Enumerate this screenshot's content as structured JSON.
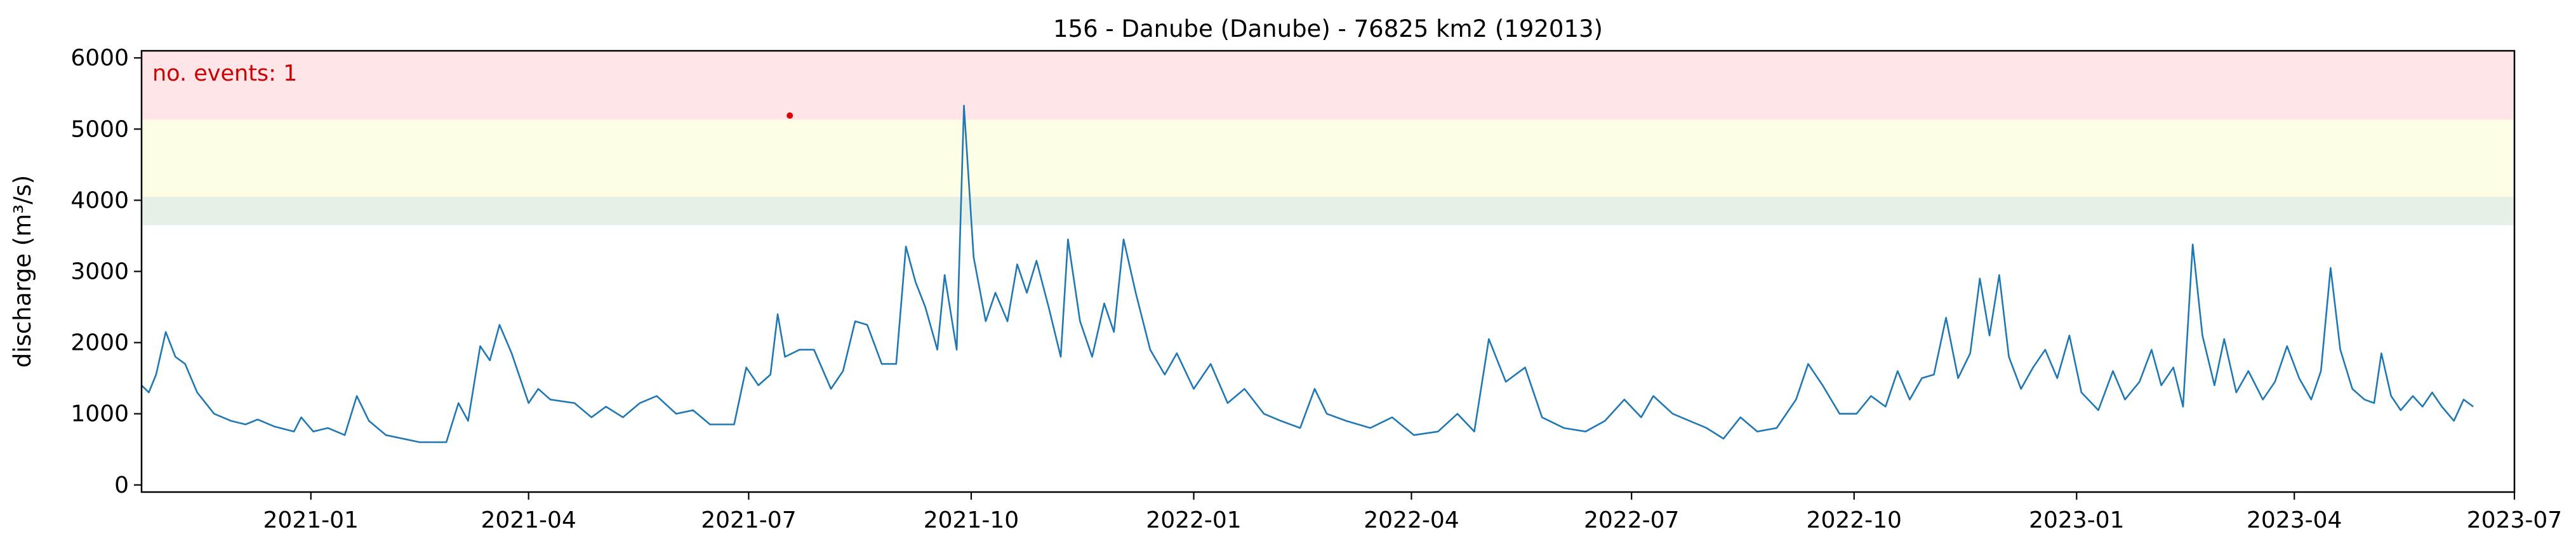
{
  "chart_data": {
    "type": "line",
    "title": "156 - Danube (Danube) - 76825 km2 (192013)",
    "xlabel": "",
    "ylabel": "discharge (m³/s)",
    "xlim": [
      "2020-10-23",
      "2023-07-01"
    ],
    "ylim": [
      -100,
      6100
    ],
    "yticks": [
      0,
      1000,
      2000,
      3000,
      4000,
      5000,
      6000
    ],
    "xticks": [
      "2021-01",
      "2021-04",
      "2021-07",
      "2021-10",
      "2022-01",
      "2022-04",
      "2022-07",
      "2022-10",
      "2023-01",
      "2023-04",
      "2023-07"
    ],
    "grid": false,
    "threshold_bands": [
      {
        "from": 3650,
        "to": 4050,
        "color": "#e6f0e6"
      },
      {
        "from": 4050,
        "to": 5130,
        "color": "#fefee6"
      },
      {
        "from": 5130,
        "to": 6100,
        "color": "#ffe5e8"
      }
    ],
    "annotation": {
      "text": "no. events: 1",
      "color": "#cc0000"
    },
    "event_markers": [
      {
        "x": "2021-07-18",
        "y": 5190,
        "color": "#e00000"
      }
    ],
    "series": [
      {
        "color": "#1f77b4",
        "points": [
          [
            "2020-10-23",
            1400
          ],
          [
            "2020-10-26",
            1300
          ],
          [
            "2020-10-29",
            1550
          ],
          [
            "2020-11-02",
            2150
          ],
          [
            "2020-11-06",
            1800
          ],
          [
            "2020-11-10",
            1700
          ],
          [
            "2020-11-15",
            1300
          ],
          [
            "2020-11-22",
            1000
          ],
          [
            "2020-11-29",
            900
          ],
          [
            "2020-12-05",
            850
          ],
          [
            "2020-12-10",
            920
          ],
          [
            "2020-12-17",
            820
          ],
          [
            "2020-12-25",
            750
          ],
          [
            "2020-12-28",
            950
          ],
          [
            "2021-01-02",
            750
          ],
          [
            "2021-01-08",
            800
          ],
          [
            "2021-01-15",
            700
          ],
          [
            "2021-01-20",
            1250
          ],
          [
            "2021-01-25",
            900
          ],
          [
            "2021-02-01",
            700
          ],
          [
            "2021-02-15",
            600
          ],
          [
            "2021-02-26",
            600
          ],
          [
            "2021-03-03",
            1150
          ],
          [
            "2021-03-07",
            900
          ],
          [
            "2021-03-12",
            1950
          ],
          [
            "2021-03-16",
            1750
          ],
          [
            "2021-03-20",
            2250
          ],
          [
            "2021-03-25",
            1850
          ],
          [
            "2021-04-01",
            1150
          ],
          [
            "2021-04-05",
            1350
          ],
          [
            "2021-04-10",
            1200
          ],
          [
            "2021-04-20",
            1150
          ],
          [
            "2021-04-27",
            950
          ],
          [
            "2021-05-03",
            1100
          ],
          [
            "2021-05-10",
            950
          ],
          [
            "2021-05-17",
            1150
          ],
          [
            "2021-05-24",
            1250
          ],
          [
            "2021-06-01",
            1000
          ],
          [
            "2021-06-08",
            1050
          ],
          [
            "2021-06-15",
            850
          ],
          [
            "2021-06-25",
            850
          ],
          [
            "2021-06-30",
            1650
          ],
          [
            "2021-07-05",
            1400
          ],
          [
            "2021-07-10",
            1550
          ],
          [
            "2021-07-13",
            2400
          ],
          [
            "2021-07-16",
            1800
          ],
          [
            "2021-07-22",
            1900
          ],
          [
            "2021-07-28",
            1900
          ],
          [
            "2021-08-04",
            1350
          ],
          [
            "2021-08-09",
            1600
          ],
          [
            "2021-08-14",
            2300
          ],
          [
            "2021-08-19",
            2250
          ],
          [
            "2021-08-25",
            1700
          ],
          [
            "2021-08-31",
            1700
          ],
          [
            "2021-09-04",
            3350
          ],
          [
            "2021-09-08",
            2850
          ],
          [
            "2021-09-12",
            2500
          ],
          [
            "2021-09-17",
            1900
          ],
          [
            "2021-09-20",
            2950
          ],
          [
            "2021-09-25",
            1900
          ],
          [
            "2021-09-28",
            5330
          ],
          [
            "2021-10-02",
            3200
          ],
          [
            "2021-10-07",
            2300
          ],
          [
            "2021-10-11",
            2700
          ],
          [
            "2021-10-16",
            2300
          ],
          [
            "2021-10-20",
            3100
          ],
          [
            "2021-10-24",
            2700
          ],
          [
            "2021-10-28",
            3150
          ],
          [
            "2021-11-02",
            2500
          ],
          [
            "2021-11-07",
            1800
          ],
          [
            "2021-11-10",
            3450
          ],
          [
            "2021-11-15",
            2300
          ],
          [
            "2021-11-20",
            1800
          ],
          [
            "2021-11-25",
            2550
          ],
          [
            "2021-11-29",
            2150
          ],
          [
            "2021-12-03",
            3450
          ],
          [
            "2021-12-08",
            2700
          ],
          [
            "2021-12-14",
            1900
          ],
          [
            "2021-12-20",
            1550
          ],
          [
            "2021-12-25",
            1850
          ],
          [
            "2022-01-01",
            1350
          ],
          [
            "2022-01-08",
            1700
          ],
          [
            "2022-01-15",
            1150
          ],
          [
            "2022-01-22",
            1350
          ],
          [
            "2022-01-30",
            1000
          ],
          [
            "2022-02-06",
            900
          ],
          [
            "2022-02-14",
            800
          ],
          [
            "2022-02-20",
            1350
          ],
          [
            "2022-02-25",
            1000
          ],
          [
            "2022-03-05",
            900
          ],
          [
            "2022-03-15",
            800
          ],
          [
            "2022-03-24",
            950
          ],
          [
            "2022-04-02",
            700
          ],
          [
            "2022-04-12",
            750
          ],
          [
            "2022-04-20",
            1000
          ],
          [
            "2022-04-27",
            750
          ],
          [
            "2022-05-03",
            2050
          ],
          [
            "2022-05-10",
            1450
          ],
          [
            "2022-05-18",
            1650
          ],
          [
            "2022-05-25",
            950
          ],
          [
            "2022-06-03",
            800
          ],
          [
            "2022-06-12",
            750
          ],
          [
            "2022-06-20",
            900
          ],
          [
            "2022-06-28",
            1200
          ],
          [
            "2022-07-05",
            950
          ],
          [
            "2022-07-10",
            1250
          ],
          [
            "2022-07-18",
            1000
          ],
          [
            "2022-07-25",
            900
          ],
          [
            "2022-08-01",
            800
          ],
          [
            "2022-08-08",
            650
          ],
          [
            "2022-08-15",
            950
          ],
          [
            "2022-08-22",
            750
          ],
          [
            "2022-08-30",
            800
          ],
          [
            "2022-09-07",
            1200
          ],
          [
            "2022-09-12",
            1700
          ],
          [
            "2022-09-18",
            1400
          ],
          [
            "2022-09-25",
            1000
          ],
          [
            "2022-10-02",
            1000
          ],
          [
            "2022-10-08",
            1250
          ],
          [
            "2022-10-14",
            1100
          ],
          [
            "2022-10-19",
            1600
          ],
          [
            "2022-10-24",
            1200
          ],
          [
            "2022-10-29",
            1500
          ],
          [
            "2022-11-03",
            1550
          ],
          [
            "2022-11-08",
            2350
          ],
          [
            "2022-11-13",
            1500
          ],
          [
            "2022-11-18",
            1850
          ],
          [
            "2022-11-22",
            2900
          ],
          [
            "2022-11-26",
            2100
          ],
          [
            "2022-11-30",
            2950
          ],
          [
            "2022-12-04",
            1800
          ],
          [
            "2022-12-09",
            1350
          ],
          [
            "2022-12-14",
            1650
          ],
          [
            "2022-12-19",
            1900
          ],
          [
            "2022-12-24",
            1500
          ],
          [
            "2022-12-29",
            2100
          ],
          [
            "2023-01-03",
            1300
          ],
          [
            "2023-01-10",
            1050
          ],
          [
            "2023-01-16",
            1600
          ],
          [
            "2023-01-21",
            1200
          ],
          [
            "2023-01-27",
            1450
          ],
          [
            "2023-02-01",
            1900
          ],
          [
            "2023-02-05",
            1400
          ],
          [
            "2023-02-10",
            1650
          ],
          [
            "2023-02-14",
            1100
          ],
          [
            "2023-02-18",
            3380
          ],
          [
            "2023-02-22",
            2100
          ],
          [
            "2023-02-27",
            1400
          ],
          [
            "2023-03-03",
            2050
          ],
          [
            "2023-03-08",
            1300
          ],
          [
            "2023-03-13",
            1600
          ],
          [
            "2023-03-19",
            1200
          ],
          [
            "2023-03-24",
            1450
          ],
          [
            "2023-03-29",
            1950
          ],
          [
            "2023-04-03",
            1500
          ],
          [
            "2023-04-08",
            1200
          ],
          [
            "2023-04-12",
            1600
          ],
          [
            "2023-04-16",
            3050
          ],
          [
            "2023-04-20",
            1900
          ],
          [
            "2023-04-25",
            1350
          ],
          [
            "2023-04-30",
            1200
          ],
          [
            "2023-05-04",
            1150
          ],
          [
            "2023-05-07",
            1850
          ],
          [
            "2023-05-11",
            1250
          ],
          [
            "2023-05-15",
            1050
          ],
          [
            "2023-05-20",
            1250
          ],
          [
            "2023-05-24",
            1100
          ],
          [
            "2023-05-28",
            1300
          ],
          [
            "2023-06-01",
            1100
          ],
          [
            "2023-06-06",
            900
          ],
          [
            "2023-06-10",
            1200
          ],
          [
            "2023-06-14",
            1100
          ]
        ]
      }
    ]
  }
}
